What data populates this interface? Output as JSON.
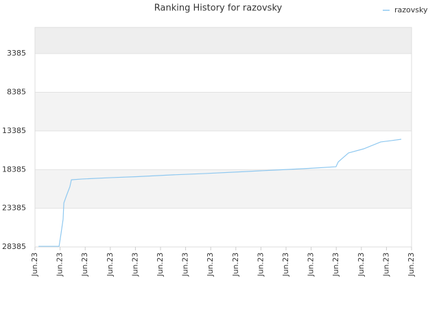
{
  "chart_data": {
    "type": "line",
    "title": "Ranking History for razovsky",
    "x": [
      0.14,
      0.96,
      1.04,
      1.12,
      1.15,
      1.26,
      1.39,
      1.45,
      1.89,
      2.98,
      4.07,
      5.44,
      6.8,
      8.17,
      9.54,
      10.9,
      11.99,
      12.08,
      12.27,
      12.49,
      13.09,
      13.77,
      14.18,
      14.59
    ],
    "series": [
      {
        "name": "razovsky",
        "color": "#8ec8f0",
        "values": [
          28300,
          28300,
          26600,
          24800,
          22700,
          21700,
          20600,
          19700,
          19600,
          19430,
          19290,
          19070,
          18890,
          18670,
          18450,
          18230,
          18010,
          17390,
          16850,
          16230,
          15700,
          14810,
          14640,
          14460
        ]
      }
    ],
    "ylim": [
      28385,
      0
    ],
    "yticks": [
      3385,
      8385,
      13385,
      18385,
      23385,
      28385
    ],
    "xlim": [
      0,
      15
    ],
    "xticks": [
      {
        "value": 0,
        "label": "Jun.23"
      },
      {
        "value": 1,
        "label": "Jun.23"
      },
      {
        "value": 2,
        "label": "Jun.23"
      },
      {
        "value": 3,
        "label": "Jun.23"
      },
      {
        "value": 4,
        "label": "Jun.23"
      },
      {
        "value": 5,
        "label": "Jun.23"
      },
      {
        "value": 6,
        "label": "Jun.23"
      },
      {
        "value": 7,
        "label": "Jun.23"
      },
      {
        "value": 8,
        "label": "Jun.23"
      },
      {
        "value": 9,
        "label": "Jun.23"
      },
      {
        "value": 10,
        "label": "Jun.23"
      },
      {
        "value": 11,
        "label": "Jun.23"
      },
      {
        "value": 12,
        "label": "Jun.23"
      },
      {
        "value": 13,
        "label": "Jun.23"
      },
      {
        "value": 14,
        "label": "Jun.23"
      },
      {
        "value": 15,
        "label": "Jun.23"
      }
    ],
    "grid": true,
    "legend": "top-right"
  }
}
